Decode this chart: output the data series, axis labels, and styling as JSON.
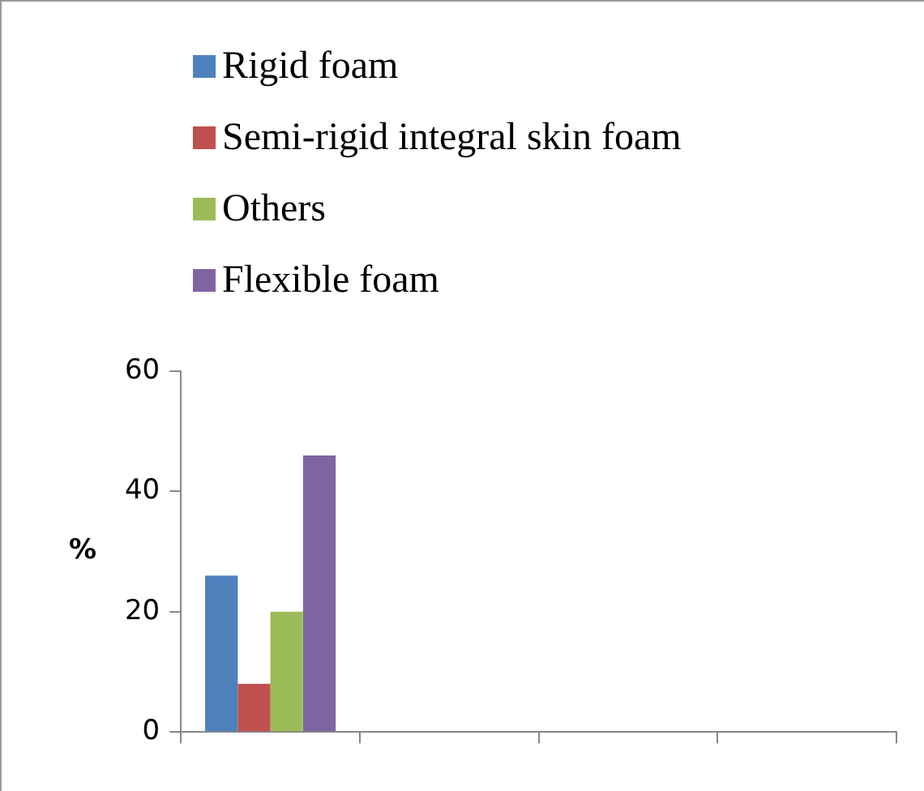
{
  "chart_data": {
    "type": "bar",
    "ylabel": "%",
    "categories": [
      null,
      null,
      null,
      null
    ],
    "series": [
      {
        "name": "Rigid foam",
        "color": "#4f81bd",
        "values": [
          26,
          null,
          null,
          null
        ]
      },
      {
        "name": "Semi-rigid integral skin foam",
        "color": "#c0504d",
        "values": [
          8,
          null,
          null,
          null
        ]
      },
      {
        "name": "Others",
        "color": "#9bbb59",
        "values": [
          20,
          null,
          null,
          null
        ]
      },
      {
        "name": "Flexible foam",
        "color": "#8064a2",
        "values": [
          46,
          null,
          null,
          null
        ]
      }
    ],
    "ylim": [
      0,
      60
    ],
    "yticks": [
      0,
      20,
      40,
      60
    ],
    "grid": false,
    "legend": "top left"
  }
}
